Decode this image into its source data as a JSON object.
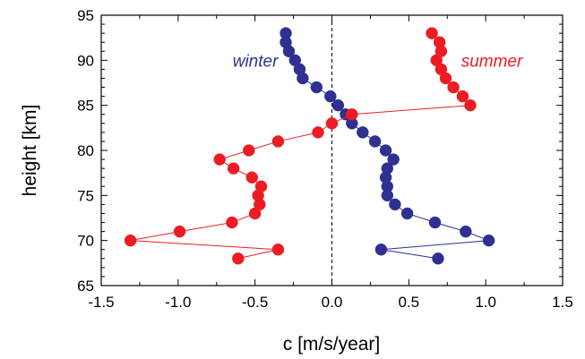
{
  "chart_data": {
    "type": "scatter",
    "xlabel": "c [m/s/year]",
    "ylabel": "height [km]",
    "xlim": [
      -1.5,
      1.5
    ],
    "ylim": [
      65,
      95
    ],
    "xticks": [
      -1.5,
      -1.0,
      -0.5,
      0.0,
      0.5,
      1.0,
      1.5
    ],
    "xtick_labels": [
      "-1.5",
      "-1.0",
      "-0.5",
      "0.0",
      "0.5",
      "1.0",
      "1.5"
    ],
    "yticks": [
      65,
      70,
      75,
      80,
      85,
      90,
      95
    ],
    "ytick_labels": [
      "65",
      "70",
      "75",
      "80",
      "85",
      "90",
      "95"
    ],
    "zero_line": "dashed",
    "grid": false,
    "series": [
      {
        "name": "winter",
        "color": "#2e3192",
        "marker": "circle",
        "line": "solid",
        "points": [
          [
            0.69,
            68
          ],
          [
            0.32,
            69
          ],
          [
            1.02,
            70
          ],
          [
            0.87,
            71
          ],
          [
            0.67,
            72
          ],
          [
            0.49,
            73
          ],
          [
            0.41,
            74
          ],
          [
            0.36,
            75
          ],
          [
            0.36,
            76
          ],
          [
            0.35,
            77
          ],
          [
            0.36,
            78
          ],
          [
            0.4,
            79
          ],
          [
            0.35,
            80
          ],
          [
            0.28,
            81
          ],
          [
            0.2,
            82
          ],
          [
            0.13,
            83
          ],
          [
            0.09,
            84
          ],
          [
            0.04,
            85
          ],
          [
            -0.01,
            86
          ],
          [
            -0.1,
            87
          ],
          [
            -0.19,
            88
          ],
          [
            -0.21,
            89
          ],
          [
            -0.24,
            90
          ],
          [
            -0.28,
            91
          ],
          [
            -0.3,
            92
          ],
          [
            -0.3,
            93
          ]
        ]
      },
      {
        "name": "summer",
        "color": "#ed1c24",
        "marker": "circle",
        "line": "solid",
        "points": [
          [
            -0.61,
            68
          ],
          [
            -0.35,
            69
          ],
          [
            -1.31,
            70
          ],
          [
            -0.99,
            71
          ],
          [
            -0.65,
            72
          ],
          [
            -0.5,
            73
          ],
          [
            -0.47,
            74
          ],
          [
            -0.48,
            75
          ],
          [
            -0.46,
            76
          ],
          [
            -0.52,
            77
          ],
          [
            -0.64,
            78
          ],
          [
            -0.73,
            79
          ],
          [
            -0.54,
            80
          ],
          [
            -0.35,
            81
          ],
          [
            -0.09,
            82
          ],
          [
            0.0,
            83
          ],
          [
            0.13,
            84
          ],
          [
            0.9,
            85
          ],
          [
            0.85,
            86
          ],
          [
            0.79,
            87
          ],
          [
            0.74,
            88
          ],
          [
            0.71,
            89
          ],
          [
            0.68,
            90
          ],
          [
            0.71,
            91
          ],
          [
            0.7,
            92
          ],
          [
            0.65,
            93
          ]
        ]
      }
    ],
    "annotations": [
      {
        "text": "winter",
        "color": "#2e3192",
        "near": [
          -0.35,
          89.3
        ],
        "anchor": "end"
      },
      {
        "text": "summer",
        "color": "#ed1c24",
        "near": [
          0.84,
          89.3
        ],
        "anchor": "start"
      }
    ]
  }
}
